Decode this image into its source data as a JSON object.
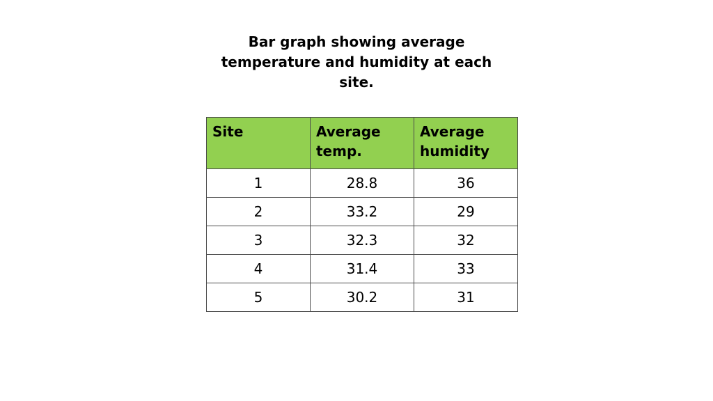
{
  "title": "Bar graph showing average temperature and humidity at each site.",
  "table": {
    "headers": [
      "Site",
      "Average temp.",
      "Average humidity"
    ],
    "rows": [
      [
        "1",
        "28.8",
        "36"
      ],
      [
        "2",
        "33.2",
        "29"
      ],
      [
        "3",
        "32.3",
        "32"
      ],
      [
        "4",
        "31.4",
        "33"
      ],
      [
        "5",
        "30.2",
        "31"
      ]
    ]
  },
  "colors": {
    "header_background": "#92d050",
    "border": "#4a4a4a"
  }
}
